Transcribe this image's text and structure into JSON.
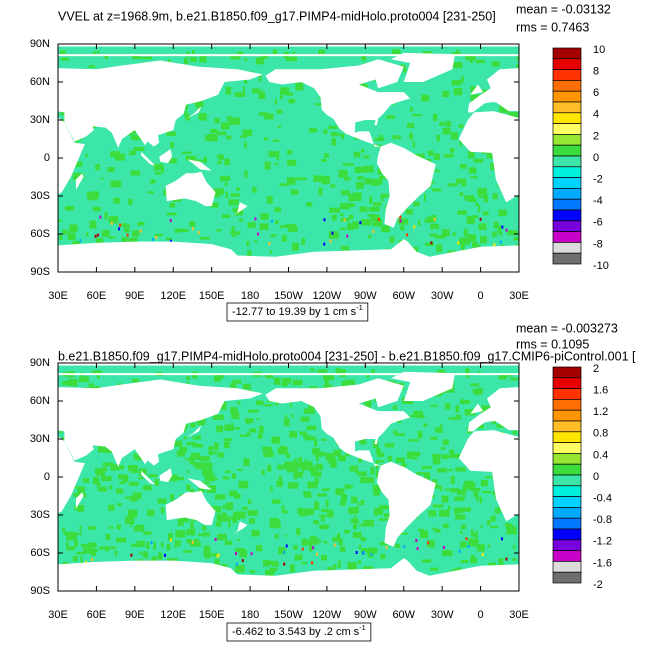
{
  "panels": [
    {
      "title": "VVEL at z=1968.9m, b.e21.B1850.f09_g17.PIMP4-midHolo.proto004 [231-250]",
      "mean": "mean = -0.03132",
      "rms": "rms = 0.7463",
      "lat_labels": [
        "90N",
        "60N",
        "30N",
        "0",
        "30S",
        "60S",
        "90S"
      ],
      "lon_labels": [
        "30E",
        "60E",
        "90E",
        "120E",
        "150E",
        "180",
        "150W",
        "120W",
        "90W",
        "60W",
        "30W",
        "0",
        "30E"
      ],
      "colorbar": {
        "labels": [
          "10",
          "8",
          "6",
          "4",
          "2",
          "0",
          "-2",
          "-4",
          "-6",
          "-8",
          "-10"
        ],
        "colors": [
          "#a50000",
          "#e60000",
          "#ff3200",
          "#ff6e00",
          "#ff9600",
          "#ffbe28",
          "#ffe600",
          "#ffff64",
          "#96e632",
          "#3cdc3c",
          "#3ce6a8",
          "#00f0dc",
          "#00d2ff",
          "#00aaff",
          "#0078ff",
          "#0000ff",
          "#7800dc",
          "#c800c8",
          "#dcdcdc",
          "#6e6e6e"
        ]
      },
      "caption": "-12.77 to 19.39 by 1 cm s",
      "caption_exp": "-1"
    },
    {
      "title": "b.e21.B1850.f09_g17.PIMP4-midHolo.proto004 [231-250] - b.e21.B1850.f09_g17.CMIP6-piControl.001 [",
      "mean": "mean = -0.003273",
      "rms": "rms = 0.1095",
      "lat_labels": [
        "90N",
        "60N",
        "30N",
        "0",
        "30S",
        "60S",
        "90S"
      ],
      "lon_labels": [
        "30E",
        "60E",
        "90E",
        "120E",
        "150E",
        "180",
        "150W",
        "120W",
        "90W",
        "60W",
        "30W",
        "0",
        "30E"
      ],
      "colorbar": {
        "labels": [
          "2",
          "1.6",
          "1.2",
          "0.8",
          "0.4",
          "0",
          "-0.4",
          "-0.8",
          "-1.2",
          "-1.6",
          "-2"
        ],
        "colors": [
          "#a50000",
          "#e60000",
          "#ff3200",
          "#ff6e00",
          "#ff9600",
          "#ffbe28",
          "#ffe600",
          "#ffff64",
          "#96e632",
          "#3cdc3c",
          "#3ce6a8",
          "#00f0dc",
          "#00d2ff",
          "#00aaff",
          "#0078ff",
          "#0000ff",
          "#7800dc",
          "#c800c8",
          "#dcdcdc",
          "#6e6e6e"
        ]
      },
      "caption": "-6.462 to 3.543 by .2 cm s",
      "caption_exp": "-1"
    }
  ]
}
